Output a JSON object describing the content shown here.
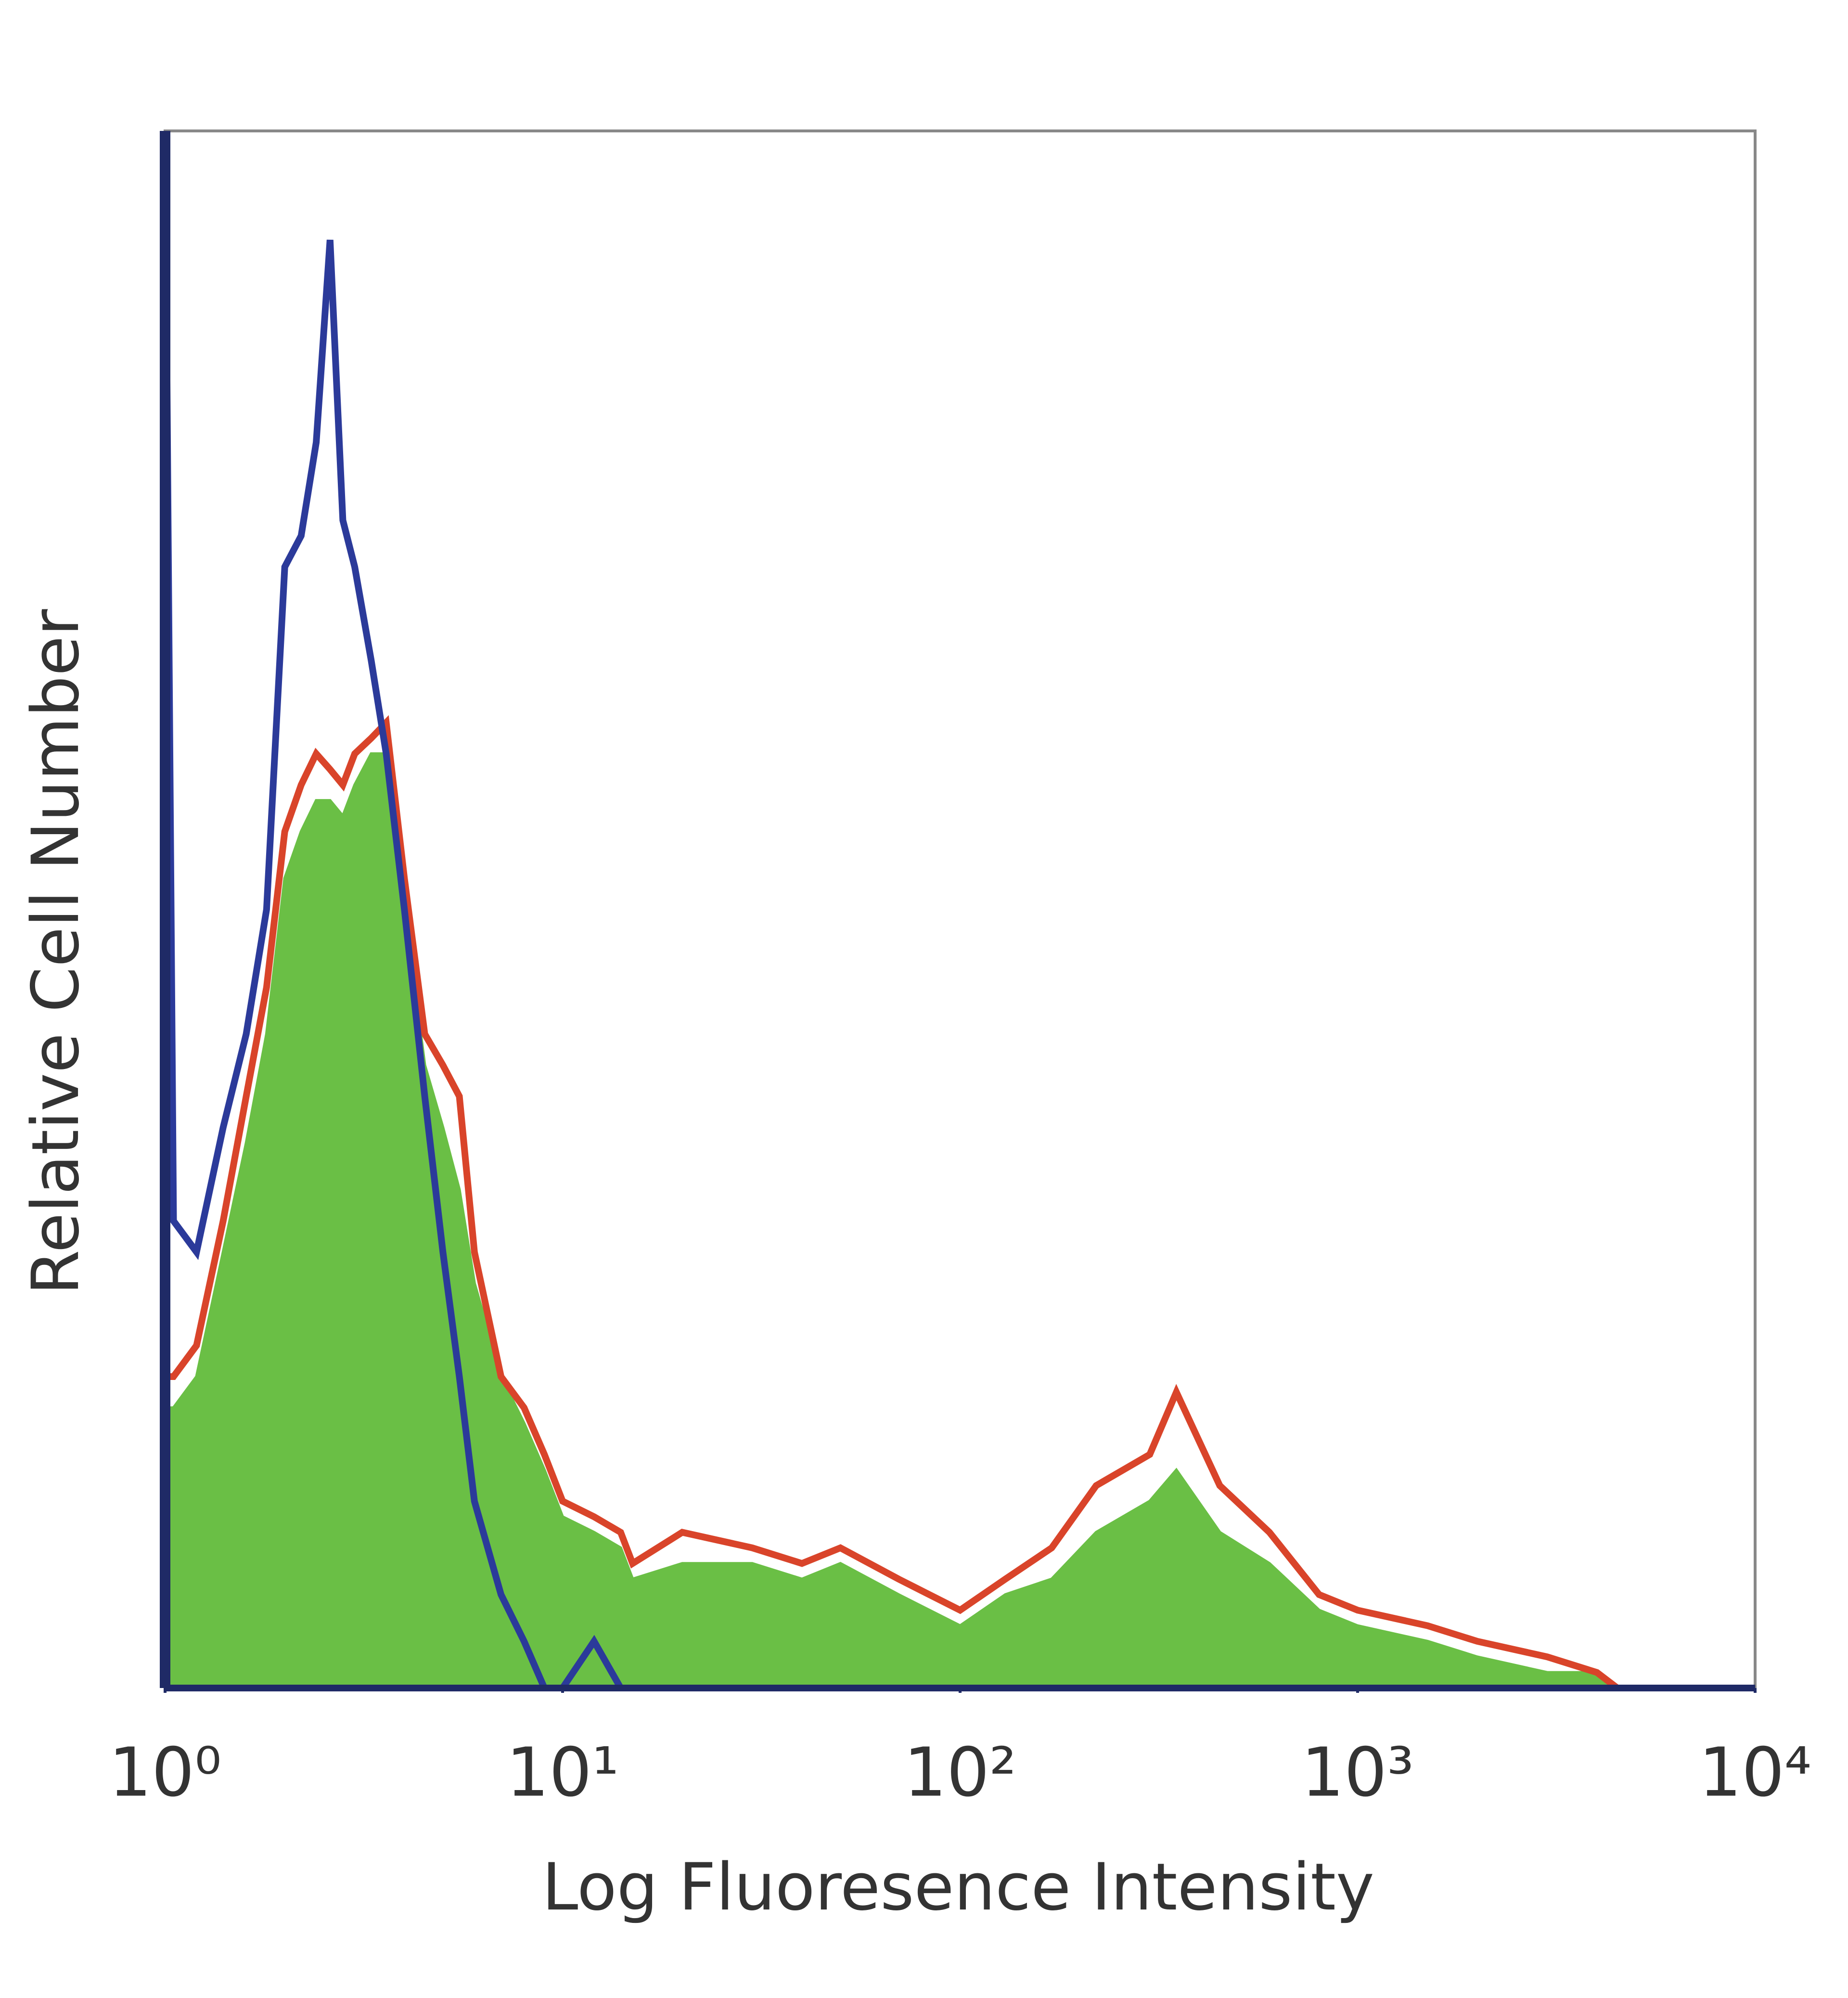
{
  "chart_data": {
    "type": "line",
    "x_label": "Log Fluoresence Intensity",
    "y_label": "Relative Cell Number",
    "log_x": true,
    "xlim": [
      1,
      10000
    ],
    "xticks": [
      {
        "value": 1,
        "label": "10⁰"
      },
      {
        "value": 10,
        "label": "10¹"
      },
      {
        "value": 100,
        "label": "10²"
      },
      {
        "value": 1000,
        "label": "10³"
      },
      {
        "value": 10000,
        "label": "10⁴"
      }
    ],
    "ylim": [
      0,
      100
    ],
    "x": [
      1,
      1.05,
      1.2,
      1.4,
      1.6,
      1.8,
      2,
      2.2,
      2.4,
      2.6,
      2.8,
      3,
      3.3,
      3.6,
      4,
      4.5,
      5,
      5.5,
      6,
      7,
      8,
      9,
      10,
      12,
      14,
      15,
      20,
      30,
      40,
      50,
      70,
      100,
      130,
      170,
      220,
      300,
      350,
      450,
      600,
      800,
      1000,
      1500,
      2000,
      3000,
      4000,
      4500
    ],
    "series": [
      {
        "color": "#6abf45",
        "fill": true,
        "values": [
          18,
          18,
          20,
          28,
          35,
          42,
          52,
          55,
          57,
          57,
          56,
          58,
          60,
          60,
          50,
          40,
          36,
          32,
          26,
          20,
          17,
          14,
          11,
          10,
          9,
          7,
          8,
          8,
          7,
          8,
          6,
          4,
          6,
          7,
          10,
          12,
          14,
          10,
          8,
          5,
          4,
          3,
          2,
          1,
          1,
          0
        ]
      },
      {
        "color": "#d9442a",
        "fill": false,
        "values": [
          20,
          20,
          22,
          30,
          38,
          45,
          55,
          58,
          60,
          59,
          58,
          60,
          61,
          62,
          52,
          42,
          40,
          38,
          28,
          20,
          18,
          15,
          12,
          11,
          10,
          8,
          10,
          9,
          8,
          9,
          7,
          5,
          7,
          9,
          13,
          15,
          19,
          13,
          10,
          6,
          5,
          4,
          3,
          2,
          1,
          0
        ]
      },
      {
        "color": "#2b3a9a",
        "fill": false,
        "values": [
          100,
          30,
          28,
          36,
          42,
          50,
          72,
          74,
          80,
          93,
          75,
          72,
          66,
          60,
          50,
          38,
          28,
          20,
          12,
          6,
          3,
          0,
          0,
          3,
          0,
          0,
          0,
          0,
          0,
          0,
          0,
          0,
          0,
          0,
          0,
          0,
          0,
          0,
          0,
          0,
          0,
          0,
          0,
          0,
          0,
          0
        ]
      }
    ]
  }
}
